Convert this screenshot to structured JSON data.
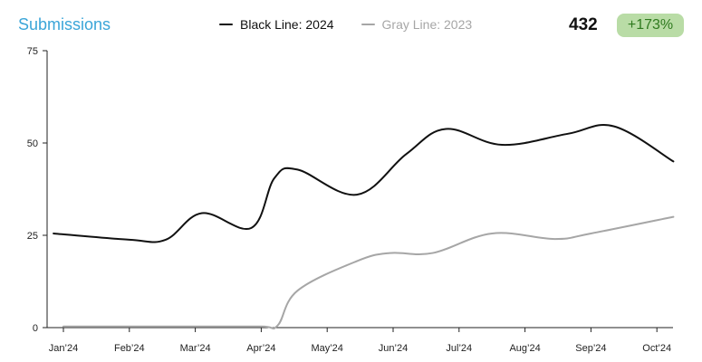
{
  "header": {
    "title": "Submissions",
    "stat_value": "432",
    "stat_change": "+173%",
    "badge_color": "#b9dca6",
    "badge_text_color": "#2f7a1f",
    "title_color": "#3aa5d8"
  },
  "legend": [
    {
      "label": "Black Line: 2024",
      "color": "#111111",
      "text_color": "#111111"
    },
    {
      "label": "Gray Line: 2023",
      "color": "#a6a6a6",
      "text_color": "#a6a6a6"
    }
  ],
  "chart_data": {
    "type": "line",
    "title": "Submissions",
    "xlabel": "",
    "ylabel": "",
    "ylim": [
      0,
      75
    ],
    "yticks": [
      0,
      25,
      50,
      75
    ],
    "xlim": [
      0,
      9.3
    ],
    "xticks": [
      {
        "x": 0,
        "label": "Jan’24"
      },
      {
        "x": 1,
        "label": "Feb’24"
      },
      {
        "x": 2,
        "label": "Mar’24"
      },
      {
        "x": 3,
        "label": "Apr’24"
      },
      {
        "x": 4,
        "label": "May’24"
      },
      {
        "x": 5,
        "label": "Jun’24"
      },
      {
        "x": 6,
        "label": "Jul’24"
      },
      {
        "x": 7,
        "label": "Aug’24"
      },
      {
        "x": 8,
        "label": "Sep’24"
      },
      {
        "x": 9,
        "label": "Oct’24"
      }
    ],
    "grid": false,
    "legend_position": "top-center",
    "series": [
      {
        "name": "Black Line: 2024",
        "color": "#111111",
        "points": [
          [
            -0.15,
            25.5
          ],
          [
            1.0,
            23.8
          ],
          [
            1.55,
            23.8
          ],
          [
            2.1,
            31.0
          ],
          [
            2.85,
            27.0
          ],
          [
            3.2,
            40.5
          ],
          [
            3.55,
            42.8
          ],
          [
            4.45,
            36.0
          ],
          [
            5.2,
            47.0
          ],
          [
            5.8,
            53.8
          ],
          [
            6.65,
            49.5
          ],
          [
            7.65,
            52.5
          ],
          [
            8.35,
            54.5
          ],
          [
            9.25,
            45.0
          ]
        ]
      },
      {
        "name": "Gray Line: 2023",
        "color": "#a6a6a6",
        "points": [
          [
            0.0,
            0.3
          ],
          [
            1.0,
            0.3
          ],
          [
            2.0,
            0.3
          ],
          [
            3.0,
            0.3
          ],
          [
            3.25,
            0.6
          ],
          [
            3.55,
            10.0
          ],
          [
            4.45,
            18.0
          ],
          [
            4.95,
            20.2
          ],
          [
            5.6,
            20.2
          ],
          [
            6.5,
            25.5
          ],
          [
            7.45,
            24.0
          ],
          [
            8.0,
            25.5
          ],
          [
            9.25,
            30.0
          ]
        ]
      }
    ]
  }
}
